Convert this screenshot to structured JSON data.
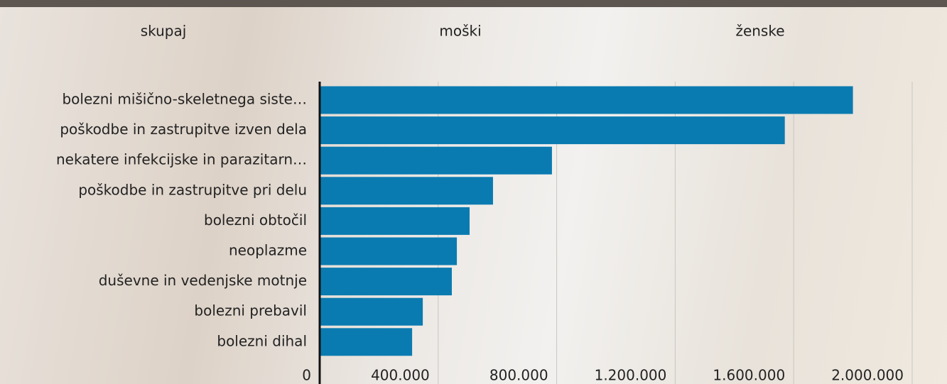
{
  "tabs": [
    "skupaj",
    "moški",
    "ženske"
  ],
  "chart_data": {
    "type": "barh",
    "categories": [
      "bolezni mišično-skeletnega siste…",
      "poškodbe in zastrupitve izven dela",
      "nekatere infekcijske in parazitarn…",
      "poškodbe in zastrupitve pri delu",
      "bolezni obtočil",
      "neoplazme",
      "duševne in vedenjske motnje",
      "bolezni prebavil",
      "bolezni dihal"
    ],
    "values": [
      1800000,
      1570000,
      784000,
      585000,
      506000,
      463000,
      446000,
      348000,
      312000
    ],
    "color": "#0a7bb0",
    "xlim": [
      0,
      2000000
    ],
    "xticks": [
      0,
      {
        "value": 400000,
        "label": "400.000"
      },
      {
        "value": 800000,
        "label": "800.000"
      },
      {
        "value": 1200000,
        "label": "1.200.000"
      },
      {
        "value": 1600000,
        "label": "1.600.000"
      },
      {
        "value": 2000000,
        "label": "2.000.000"
      }
    ],
    "grid": true
  }
}
